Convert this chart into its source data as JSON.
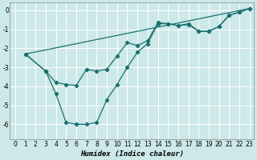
{
  "xlabel": "Humidex (Indice chaleur)",
  "bg_color": "#cce8e8",
  "line_color": "#1a7070",
  "grid_color": "#ffffff",
  "xlim": [
    -0.5,
    23.4
  ],
  "ylim": [
    -6.8,
    0.4
  ],
  "yticks": [
    0,
    -1,
    -2,
    -3,
    -4,
    -5,
    -6
  ],
  "xticks": [
    0,
    1,
    2,
    3,
    4,
    5,
    6,
    7,
    8,
    9,
    10,
    11,
    12,
    13,
    14,
    15,
    16,
    17,
    18,
    19,
    20,
    21,
    22,
    23
  ],
  "line1_x": [
    1,
    3,
    4,
    5,
    6,
    7,
    8,
    9,
    10,
    11,
    12,
    13,
    14,
    15,
    16,
    17,
    18,
    19,
    20,
    21,
    22,
    23
  ],
  "line1_y": [
    -2.3,
    -3.2,
    -3.8,
    -3.9,
    -3.95,
    -3.1,
    -3.2,
    -3.1,
    -2.4,
    -1.7,
    -1.85,
    -1.6,
    -0.65,
    -0.7,
    -0.8,
    -0.75,
    -1.1,
    -1.1,
    -0.85,
    -0.25,
    -0.1,
    0.1
  ],
  "line2_x": [
    1,
    3,
    4,
    5,
    6,
    7,
    8,
    9,
    10,
    11,
    12,
    13,
    14,
    15,
    16,
    17,
    18,
    19,
    20,
    21,
    22,
    23
  ],
  "line2_y": [
    -2.3,
    -3.2,
    -4.4,
    -5.9,
    -6.0,
    -6.0,
    -5.9,
    -4.7,
    -3.9,
    -3.0,
    -2.2,
    -1.75,
    -0.7,
    -0.7,
    -0.8,
    -0.7,
    -1.1,
    -1.1,
    -0.85,
    -0.25,
    -0.1,
    0.1
  ],
  "line3_x": [
    1,
    23
  ],
  "line3_y": [
    -2.3,
    0.1
  ]
}
